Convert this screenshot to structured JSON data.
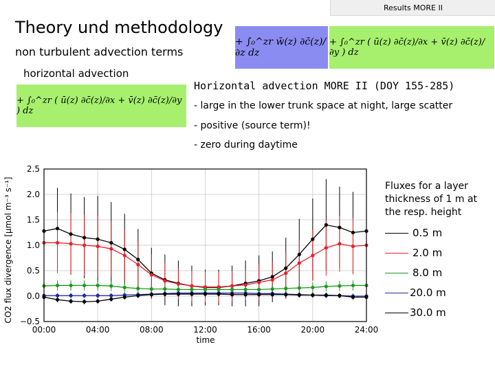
{
  "header": {
    "label": "Results MORE II"
  },
  "slide": {
    "title": "Theory und methodology",
    "subtitle": "non turbulent advection terms",
    "small_label": "horizontal advection"
  },
  "formulas": {
    "vertical": "+ ∫₀^zr w̄(z) ∂c̄(z)/∂z dz",
    "horizontal": "+ ∫₀^zr ( ū(z) ∂c̄(z)/∂x + v̄(z) ∂c̄(z)/∂y ) dz"
  },
  "bullets": {
    "heading": "Horizontal advection MORE II (DOY 155-285)",
    "items": [
      "- large in the lower trunk space at night, large scatter",
      "- positive (source term)!",
      "- zero during daytime"
    ]
  },
  "legend": {
    "title": "Fluxes for a layer thickness of 1 m at the resp. height",
    "entries": [
      {
        "label": "0.5 m",
        "color": "#000000"
      },
      {
        "label": "2.0 m",
        "color": "#e8202a"
      },
      {
        "label": "8.0 m",
        "color": "#1a9a1a"
      },
      {
        "label": "20.0 m",
        "color": "#1a2aa0"
      },
      {
        "label": "30.0 m",
        "color": "#000000"
      }
    ]
  },
  "chart_data": {
    "type": "line",
    "xlabel": "time",
    "ylabel": "CO2 flux divergence [µmol m⁻³ s⁻¹]",
    "x": [
      0,
      1,
      2,
      3,
      4,
      5,
      6,
      7,
      8,
      9,
      10,
      11,
      12,
      13,
      14,
      15,
      16,
      17,
      18,
      19,
      20,
      21,
      22,
      23,
      24
    ],
    "xticks": [
      "00:00",
      "04:00",
      "08:00",
      "12:00",
      "16:00",
      "20:00",
      "24:00"
    ],
    "xtick_values": [
      0,
      4,
      8,
      12,
      16,
      20,
      24
    ],
    "yticks": [
      "2.5",
      "2.0",
      "1.5",
      "1.0",
      "0.5",
      "0.0",
      "−0.5"
    ],
    "ytick_values": [
      2.5,
      2.0,
      1.5,
      1.0,
      0.5,
      0.0,
      -0.5
    ],
    "ylim": [
      -0.5,
      2.5
    ],
    "xlim": [
      0,
      24
    ],
    "series": [
      {
        "name": "0.5 m",
        "color": "#000000",
        "values": [
          1.28,
          1.33,
          1.22,
          1.15,
          1.12,
          1.05,
          0.92,
          0.72,
          0.45,
          0.32,
          0.25,
          0.2,
          0.17,
          0.17,
          0.2,
          0.25,
          0.3,
          0.38,
          0.55,
          0.82,
          1.12,
          1.4,
          1.35,
          1.25,
          1.28
        ],
        "err": [
          0.6,
          0.8,
          0.8,
          0.8,
          0.85,
          0.8,
          0.7,
          0.6,
          0.5,
          0.5,
          0.45,
          0.4,
          0.35,
          0.35,
          0.4,
          0.45,
          0.5,
          0.5,
          0.6,
          0.7,
          0.8,
          0.9,
          0.8,
          0.8,
          0.7
        ]
      },
      {
        "name": "2.0 m",
        "color": "#e8202a",
        "values": [
          1.05,
          1.05,
          1.03,
          1.0,
          0.98,
          0.93,
          0.8,
          0.62,
          0.42,
          0.3,
          0.24,
          0.2,
          0.18,
          0.18,
          0.2,
          0.22,
          0.27,
          0.32,
          0.45,
          0.65,
          0.8,
          0.95,
          1.03,
          0.98,
          1.0
        ],
        "err": [
          0.55,
          0.6,
          0.6,
          0.6,
          0.6,
          0.55,
          0.5,
          0.45,
          0.4,
          0.35,
          0.3,
          0.3,
          0.3,
          0.3,
          0.3,
          0.3,
          0.35,
          0.35,
          0.4,
          0.45,
          0.5,
          0.55,
          0.55,
          0.55,
          0.5
        ]
      },
      {
        "name": "8.0 m",
        "color": "#1a9a1a",
        "values": [
          0.2,
          0.21,
          0.21,
          0.21,
          0.21,
          0.2,
          0.17,
          0.15,
          0.14,
          0.14,
          0.13,
          0.13,
          0.13,
          0.13,
          0.13,
          0.13,
          0.13,
          0.14,
          0.15,
          0.16,
          0.17,
          0.19,
          0.2,
          0.21,
          0.21
        ],
        "err": [
          0.1,
          0.1,
          0.1,
          0.1,
          0.1,
          0.1,
          0.1,
          0.08,
          0.08,
          0.08,
          0.08,
          0.08,
          0.08,
          0.08,
          0.08,
          0.08,
          0.08,
          0.08,
          0.08,
          0.1,
          0.1,
          0.1,
          0.1,
          0.1,
          0.1
        ]
      },
      {
        "name": "20.0 m",
        "color": "#1a2aa0",
        "values": [
          0.01,
          0.01,
          0.01,
          0.01,
          0.01,
          0.01,
          0.02,
          0.03,
          0.04,
          0.05,
          0.06,
          0.06,
          0.06,
          0.06,
          0.06,
          0.06,
          0.05,
          0.05,
          0.04,
          0.03,
          0.02,
          0.01,
          0.01,
          0.0,
          0.0
        ],
        "err": [
          0.05,
          0.05,
          0.05,
          0.05,
          0.05,
          0.05,
          0.05,
          0.05,
          0.05,
          0.05,
          0.05,
          0.05,
          0.05,
          0.05,
          0.05,
          0.05,
          0.05,
          0.05,
          0.05,
          0.05,
          0.05,
          0.05,
          0.05,
          0.05,
          0.05
        ]
      },
      {
        "name": "30.0 m",
        "color": "#000000",
        "values": [
          -0.02,
          -0.07,
          -0.1,
          -0.11,
          -0.1,
          -0.06,
          -0.02,
          0.01,
          0.03,
          0.04,
          0.04,
          0.04,
          0.04,
          0.04,
          0.03,
          0.03,
          0.03,
          0.03,
          0.03,
          0.02,
          0.02,
          0.02,
          0.01,
          -0.02,
          -0.02
        ],
        "err": [
          0.05,
          0.05,
          0.05,
          0.05,
          0.05,
          0.05,
          0.05,
          0.05,
          0.05,
          0.05,
          0.05,
          0.05,
          0.05,
          0.05,
          0.05,
          0.05,
          0.05,
          0.05,
          0.05,
          0.05,
          0.05,
          0.05,
          0.05,
          0.05,
          0.05
        ]
      }
    ]
  }
}
